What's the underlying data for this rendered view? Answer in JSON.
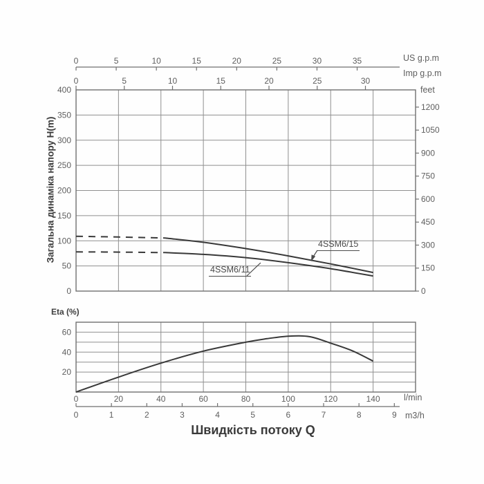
{
  "colors": {
    "curve": "#383838",
    "grid": "#8f8f8f",
    "border": "#6f6f6f",
    "tick_text": "#5e5e5e",
    "title_text": "#3c3c3c",
    "background": "#fefefe"
  },
  "x_title": "Швидкість потоку Q",
  "chart_data": [
    {
      "id": "head_flow_chart",
      "type": "line",
      "y_title": "Загальна динаміка напору H(m)",
      "y_unit": "m",
      "y_range": [
        0,
        400
      ],
      "y_tick_step": 50,
      "y_ticks": [
        400,
        350,
        300,
        250,
        200,
        150,
        100,
        50,
        0
      ],
      "right_axis": {
        "label": "feet",
        "ticks": [
          1200,
          1050,
          900,
          750,
          600,
          450,
          300,
          150,
          0
        ]
      },
      "top_axes": [
        {
          "label": "US g.p.m",
          "ticks": [
            0,
            5,
            10,
            15,
            20,
            25,
            30,
            35
          ],
          "lmin_per_unit": 3.785
        },
        {
          "label": "Imp g.p.m",
          "ticks": [
            0,
            5,
            10,
            15,
            20,
            25,
            30
          ],
          "lmin_per_unit": 4.546
        }
      ],
      "x_unit": "l/min",
      "x_range": [
        0,
        160
      ],
      "x_gridline_step": 20,
      "grid": true,
      "legend_position": "inline-annotations",
      "series": [
        {
          "name": "4SSM6/15",
          "segment": "dashed",
          "x": [
            0,
            20,
            42
          ],
          "y": [
            109,
            107.5,
            105.5
          ]
        },
        {
          "name": "4SSM6/15",
          "segment": "solid",
          "x": [
            42,
            60,
            80,
            100,
            120,
            140
          ],
          "y": [
            105.5,
            97,
            84.5,
            70,
            54,
            37
          ]
        },
        {
          "name": "4SSM6/11",
          "segment": "dashed",
          "x": [
            0,
            20,
            42
          ],
          "y": [
            78,
            77.5,
            76.5
          ]
        },
        {
          "name": "4SSM6/11",
          "segment": "solid",
          "x": [
            42,
            60,
            80,
            100,
            120,
            140
          ],
          "y": [
            76.5,
            73,
            66.5,
            56.5,
            44.5,
            30
          ]
        }
      ],
      "annotations": [
        {
          "text": "4SSM6/15"
        },
        {
          "text": "4SSM6/11"
        }
      ]
    },
    {
      "id": "efficiency_chart",
      "type": "line",
      "title": "Eta (%)",
      "y_unit": "%",
      "y_range": [
        0,
        70
      ],
      "y_tick_step": 10,
      "y_ticks": [
        60,
        40,
        20
      ],
      "x_range": [
        0,
        160
      ],
      "x_gridline_step": 20,
      "x_ticks": [
        0,
        20,
        40,
        60,
        80,
        100,
        120,
        140
      ],
      "x_axis_label": "l/min",
      "secondary_x_axis": {
        "label": "m3/h",
        "ticks": [
          0,
          1,
          2,
          3,
          4,
          5,
          6,
          7,
          8,
          9
        ],
        "lmin_per_unit": 16.667
      },
      "grid": true,
      "series": [
        {
          "name": "Eta",
          "segment": "solid",
          "x": [
            0,
            20,
            40,
            60,
            80,
            90,
            100,
            110,
            120,
            130,
            140
          ],
          "y": [
            0,
            15,
            29,
            41,
            50,
            53.5,
            56,
            55.5,
            49,
            41.5,
            31
          ]
        }
      ]
    }
  ]
}
